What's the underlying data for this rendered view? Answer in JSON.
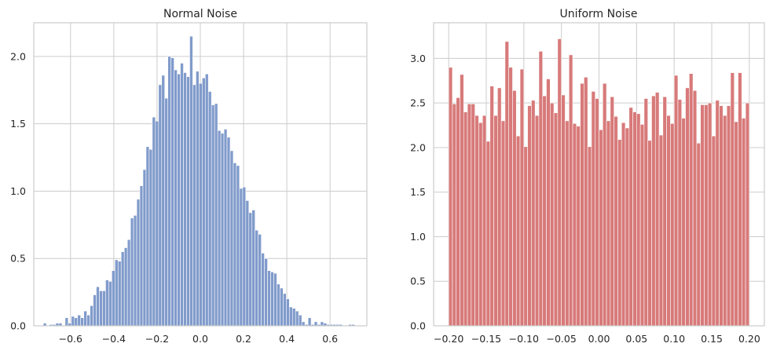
{
  "chart_data": [
    {
      "type": "bar",
      "title": "Normal Noise",
      "xlabel": "",
      "ylabel": "",
      "xlim": [
        -0.77,
        0.77
      ],
      "ylim": [
        0,
        2.25
      ],
      "grid": true,
      "legend": "none",
      "color": "#819bcb",
      "xticks": [
        -0.6,
        -0.4,
        -0.2,
        0.0,
        0.2,
        0.4,
        0.6
      ],
      "xtick_labels": [
        "−0.6",
        "−0.4",
        "−0.2",
        "0.0",
        "0.2",
        "0.4",
        "0.6"
      ],
      "yticks": [
        0,
        0.5,
        1.0,
        1.5,
        2.0
      ],
      "ytick_labels": [
        "0.0",
        "0.5",
        "1.0",
        "1.5",
        "2.0"
      ],
      "bin_edges_range": [
        -0.726,
        0.714
      ],
      "values": [
        0.02,
        0,
        0.01,
        0.01,
        0.02,
        0.02,
        0,
        0.06,
        0.02,
        0.07,
        0.06,
        0.08,
        0.06,
        0.11,
        0.08,
        0.15,
        0.23,
        0.29,
        0.26,
        0.26,
        0.34,
        0.33,
        0.41,
        0.49,
        0.48,
        0.55,
        0.58,
        0.64,
        0.8,
        0.82,
        0.94,
        1.04,
        1.16,
        1.33,
        1.31,
        1.55,
        1.52,
        1.79,
        1.86,
        1.69,
        2.0,
        1.99,
        1.9,
        1.87,
        1.95,
        1.88,
        1.85,
        2.15,
        1.79,
        1.89,
        1.8,
        1.84,
        1.87,
        1.74,
        1.64,
        1.65,
        1.45,
        1.43,
        1.46,
        1.4,
        1.3,
        1.21,
        1.19,
        1.02,
        1.03,
        0.93,
        0.84,
        0.86,
        0.71,
        0.68,
        0.54,
        0.5,
        0.41,
        0.4,
        0.39,
        0.31,
        0.28,
        0.24,
        0.2,
        0.14,
        0.13,
        0.11,
        0.08,
        0.03,
        0.01,
        0.06,
        0.01,
        0.03,
        0.01,
        0.03,
        0.02,
        0.01,
        0.01,
        0.01,
        0.01,
        0.01,
        0,
        0,
        0.01,
        0.01
      ]
    },
    {
      "type": "bar",
      "title": "Uniform Noise",
      "xlabel": "",
      "ylabel": "",
      "xlim": [
        -0.22,
        0.22
      ],
      "ylim": [
        0,
        3.4
      ],
      "grid": true,
      "legend": "none",
      "color": "#d87a7a",
      "xticks": [
        -0.2,
        -0.15,
        -0.1,
        -0.05,
        0.0,
        0.05,
        0.1,
        0.15,
        0.2
      ],
      "xtick_labels": [
        "−0.20",
        "−0.15",
        "−0.10",
        "−0.05",
        "0.00",
        "0.05",
        "0.10",
        "0.15",
        "0.20"
      ],
      "yticks": [
        0,
        0.5,
        1.0,
        1.5,
        2.0,
        2.5,
        3.0
      ],
      "ytick_labels": [
        "0.0",
        "0.5",
        "1.0",
        "1.5",
        "2.0",
        "2.5",
        "3.0"
      ],
      "bin_edges_range": [
        -0.2,
        0.2
      ],
      "values": [
        2.9,
        2.49,
        2.56,
        2.82,
        2.4,
        2.49,
        2.49,
        2.36,
        2.28,
        2.36,
        2.07,
        2.69,
        2.36,
        2.67,
        2.3,
        3.19,
        2.9,
        2.64,
        2.13,
        2.88,
        2.01,
        2.47,
        2.53,
        2.36,
        3.08,
        2.58,
        2.77,
        2.5,
        2.39,
        3.22,
        2.59,
        2.3,
        3.04,
        2.27,
        2.24,
        2.72,
        2.79,
        2.01,
        2.63,
        2.55,
        2.2,
        2.72,
        2.3,
        2.57,
        2.35,
        2.09,
        2.28,
        2.22,
        2.45,
        2.4,
        2.38,
        2.26,
        2.55,
        2.08,
        2.58,
        2.62,
        2.14,
        2.57,
        2.36,
        2.27,
        2.81,
        2.54,
        2.33,
        2.67,
        2.83,
        2.64,
        2.05,
        2.48,
        2.48,
        2.5,
        2.13,
        2.53,
        2.47,
        2.36,
        2.47,
        2.84,
        2.29,
        2.84,
        2.33,
        2.5
      ]
    }
  ]
}
